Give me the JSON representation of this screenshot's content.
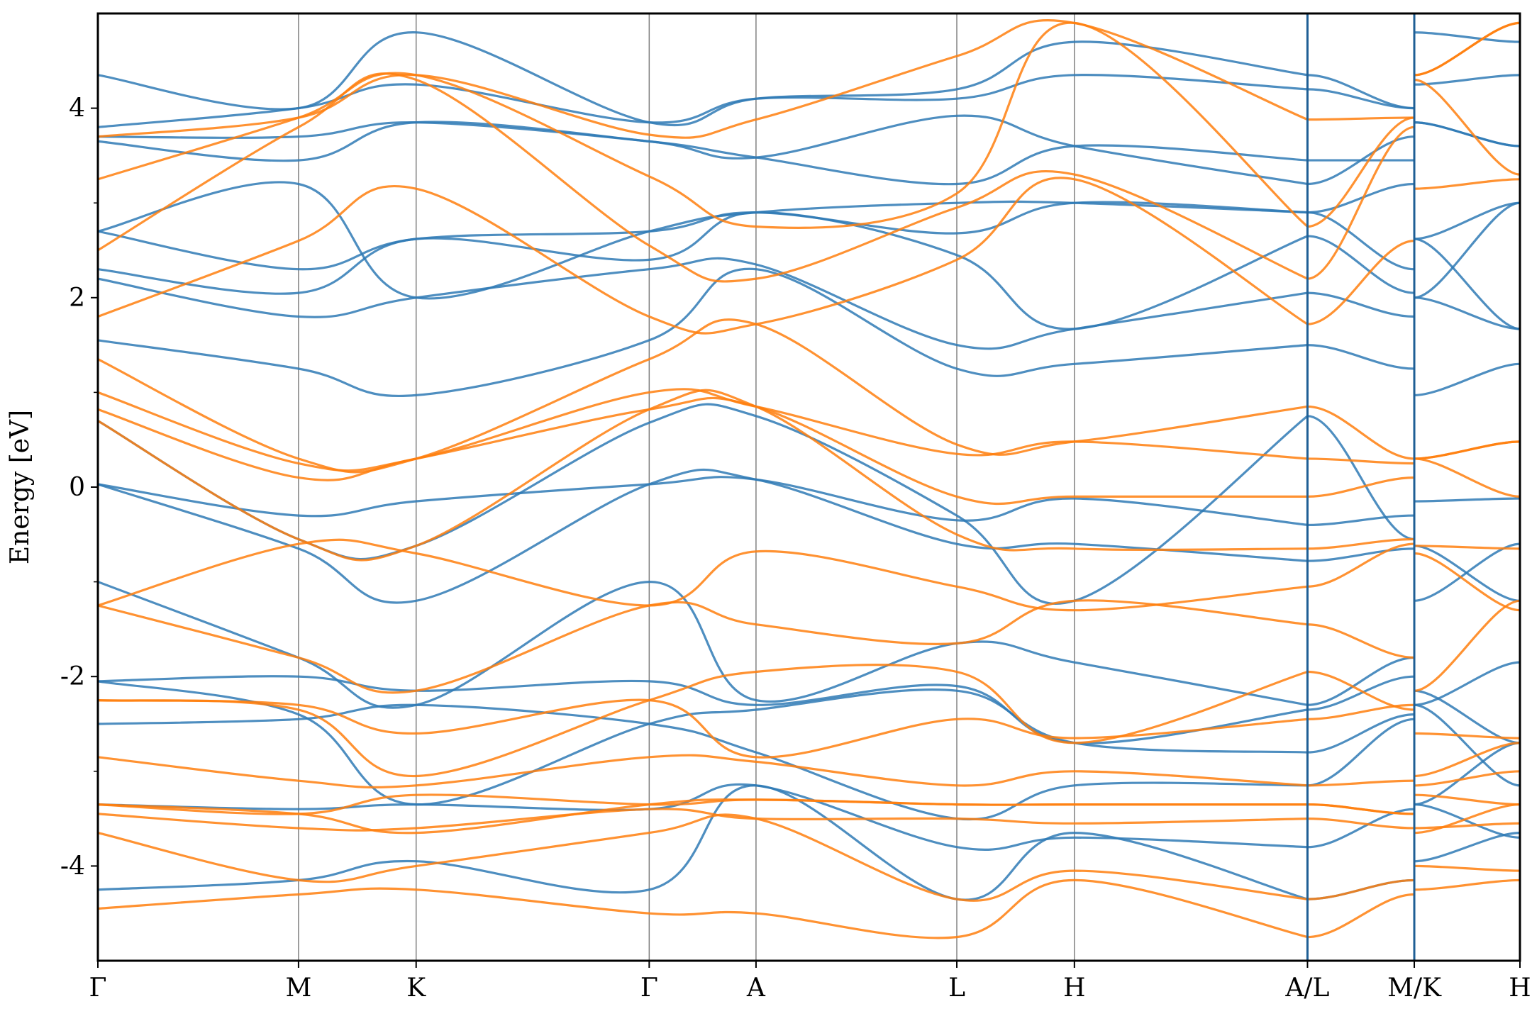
{
  "chart_data": {
    "type": "line",
    "title": "",
    "xlabel": "",
    "ylabel": "Energy [eV]",
    "ylim": [
      -5,
      5
    ],
    "y_ticks": [
      {
        "value": 4,
        "label": "4"
      },
      {
        "value": 2,
        "label": "2"
      },
      {
        "value": 0,
        "label": "0"
      },
      {
        "value": -2,
        "label": "-2"
      },
      {
        "value": -4,
        "label": "-4"
      }
    ],
    "y_minor_ticks": [
      3,
      1,
      -1,
      -3
    ],
    "xlim": [
      0,
      1.0
    ],
    "high_symmetry_points": [
      {
        "label": "Γ",
        "position": 0.0
      },
      {
        "label": "M",
        "position": 0.1411
      },
      {
        "label": "K",
        "position": 0.2238
      },
      {
        "label": "Γ",
        "position": 0.3877
      },
      {
        "label": "A",
        "position": 0.4628
      },
      {
        "label": "L",
        "position": 0.604
      },
      {
        "label": "H",
        "position": 0.6867
      },
      {
        "label": "A/L",
        "position": 0.8506
      },
      {
        "label": "M/K",
        "position": 0.9257
      },
      {
        "label": "H",
        "position": 1.0
      }
    ],
    "grid": "vertical lines at high-symmetry points",
    "legend": "none",
    "series": [
      {
        "color": "#2f7ab5",
        "x": [
          0,
          0.1411,
          0.2238,
          0.3877,
          0.4628,
          0.604,
          0.6867,
          0.8506
        ],
        "bands": [
          [
            -4.25,
            -4.15,
            -3.95,
            -4.25,
            -3.15,
            -4.35,
            -3.65,
            -4.35
          ],
          [
            -3.35,
            -3.4,
            -3.35,
            -3.4,
            -3.15,
            -3.8,
            -3.7,
            -3.8
          ],
          [
            -2.5,
            -2.45,
            -2.3,
            -2.5,
            -2.8,
            -3.5,
            -3.15,
            -3.15
          ],
          [
            -2.05,
            -2.4,
            -3.35,
            -2.5,
            -2.35,
            -2.15,
            -2.7,
            -2.8
          ],
          [
            -2.05,
            -2.0,
            -2.15,
            -2.05,
            -2.3,
            -2.1,
            -2.7,
            -2.35
          ],
          [
            -1.0,
            -1.8,
            -2.3,
            -1.0,
            -2.25,
            -1.65,
            -1.85,
            -2.3
          ],
          [
            0.03,
            -0.65,
            -1.2,
            0.03,
            0.08,
            -0.6,
            -0.6,
            -0.78
          ],
          [
            0.03,
            -0.3,
            -0.15,
            0.03,
            0.08,
            -0.35,
            -0.12,
            -0.4
          ],
          [
            0.7,
            -0.55,
            -0.62,
            0.68,
            0.75,
            -0.3,
            -1.2,
            0.75
          ],
          [
            1.55,
            1.25,
            0.97,
            1.55,
            2.3,
            1.25,
            1.3,
            1.5
          ],
          [
            2.2,
            1.8,
            2.0,
            2.3,
            2.35,
            1.5,
            1.67,
            2.05
          ],
          [
            2.3,
            2.05,
            2.62,
            2.4,
            2.9,
            2.45,
            1.67,
            2.65
          ],
          [
            2.7,
            2.3,
            2.62,
            2.7,
            2.9,
            2.68,
            3.0,
            2.9
          ],
          [
            2.7,
            3.2,
            2.0,
            2.7,
            2.9,
            3.0,
            3.0,
            2.9
          ],
          [
            3.65,
            3.45,
            3.85,
            3.65,
            3.48,
            3.2,
            3.6,
            3.45
          ],
          [
            3.7,
            3.7,
            3.85,
            3.65,
            3.48,
            3.92,
            3.6,
            3.2
          ],
          [
            3.8,
            4.0,
            4.25,
            3.85,
            4.1,
            4.1,
            4.35,
            4.2
          ],
          [
            4.35,
            4.0,
            4.8,
            3.85,
            4.1,
            4.2,
            4.7,
            4.35
          ]
        ]
      },
      {
        "color": "#ff7f0e",
        "x": [
          0,
          0.1411,
          0.2238,
          0.3877,
          0.4628,
          0.604,
          0.6867,
          0.8506
        ],
        "bands": [
          [
            -4.45,
            -4.3,
            -4.25,
            -4.5,
            -4.5,
            -4.75,
            -4.15,
            -4.75
          ],
          [
            -3.65,
            -4.15,
            -4.0,
            -3.65,
            -3.5,
            -4.35,
            -4.05,
            -4.35
          ],
          [
            -3.45,
            -3.6,
            -3.6,
            -3.4,
            -3.5,
            -3.5,
            -3.55,
            -3.5
          ],
          [
            -3.35,
            -3.45,
            -3.65,
            -3.35,
            -3.3,
            -3.35,
            -3.35,
            -3.35
          ],
          [
            -3.35,
            -3.45,
            -3.25,
            -3.35,
            -3.3,
            -3.35,
            -3.35,
            -3.35
          ],
          [
            -2.85,
            -3.1,
            -3.15,
            -2.85,
            -2.9,
            -3.15,
            -3.0,
            -3.15
          ],
          [
            -2.25,
            -2.3,
            -2.6,
            -2.25,
            -2.85,
            -2.45,
            -2.65,
            -2.45
          ],
          [
            -2.25,
            -2.35,
            -3.05,
            -2.25,
            -1.95,
            -1.95,
            -2.7,
            -1.95
          ],
          [
            -1.25,
            -1.8,
            -2.15,
            -1.25,
            -1.45,
            -1.65,
            -1.2,
            -1.45
          ],
          [
            -1.25,
            -0.6,
            -0.7,
            -1.25,
            -0.68,
            -1.05,
            -1.3,
            -1.05
          ],
          [
            0.7,
            -0.55,
            -0.62,
            0.82,
            0.85,
            -0.5,
            -0.65,
            -0.65
          ],
          [
            0.82,
            0.1,
            0.3,
            0.82,
            0.85,
            -0.1,
            -0.1,
            -0.1
          ],
          [
            1.0,
            0.25,
            0.3,
            1.0,
            0.85,
            0.35,
            0.48,
            0.3
          ],
          [
            1.35,
            0.3,
            0.3,
            1.35,
            1.72,
            0.45,
            0.48,
            0.85
          ],
          [
            1.8,
            2.6,
            3.15,
            1.8,
            1.72,
            2.4,
            3.25,
            1.72
          ],
          [
            2.5,
            3.8,
            4.3,
            2.55,
            2.2,
            2.95,
            3.3,
            2.2
          ],
          [
            3.25,
            3.9,
            4.35,
            3.28,
            2.75,
            3.1,
            4.9,
            2.75
          ],
          [
            3.7,
            3.9,
            4.35,
            3.72,
            3.88,
            4.55,
            4.9,
            3.88
          ]
        ]
      }
    ]
  }
}
